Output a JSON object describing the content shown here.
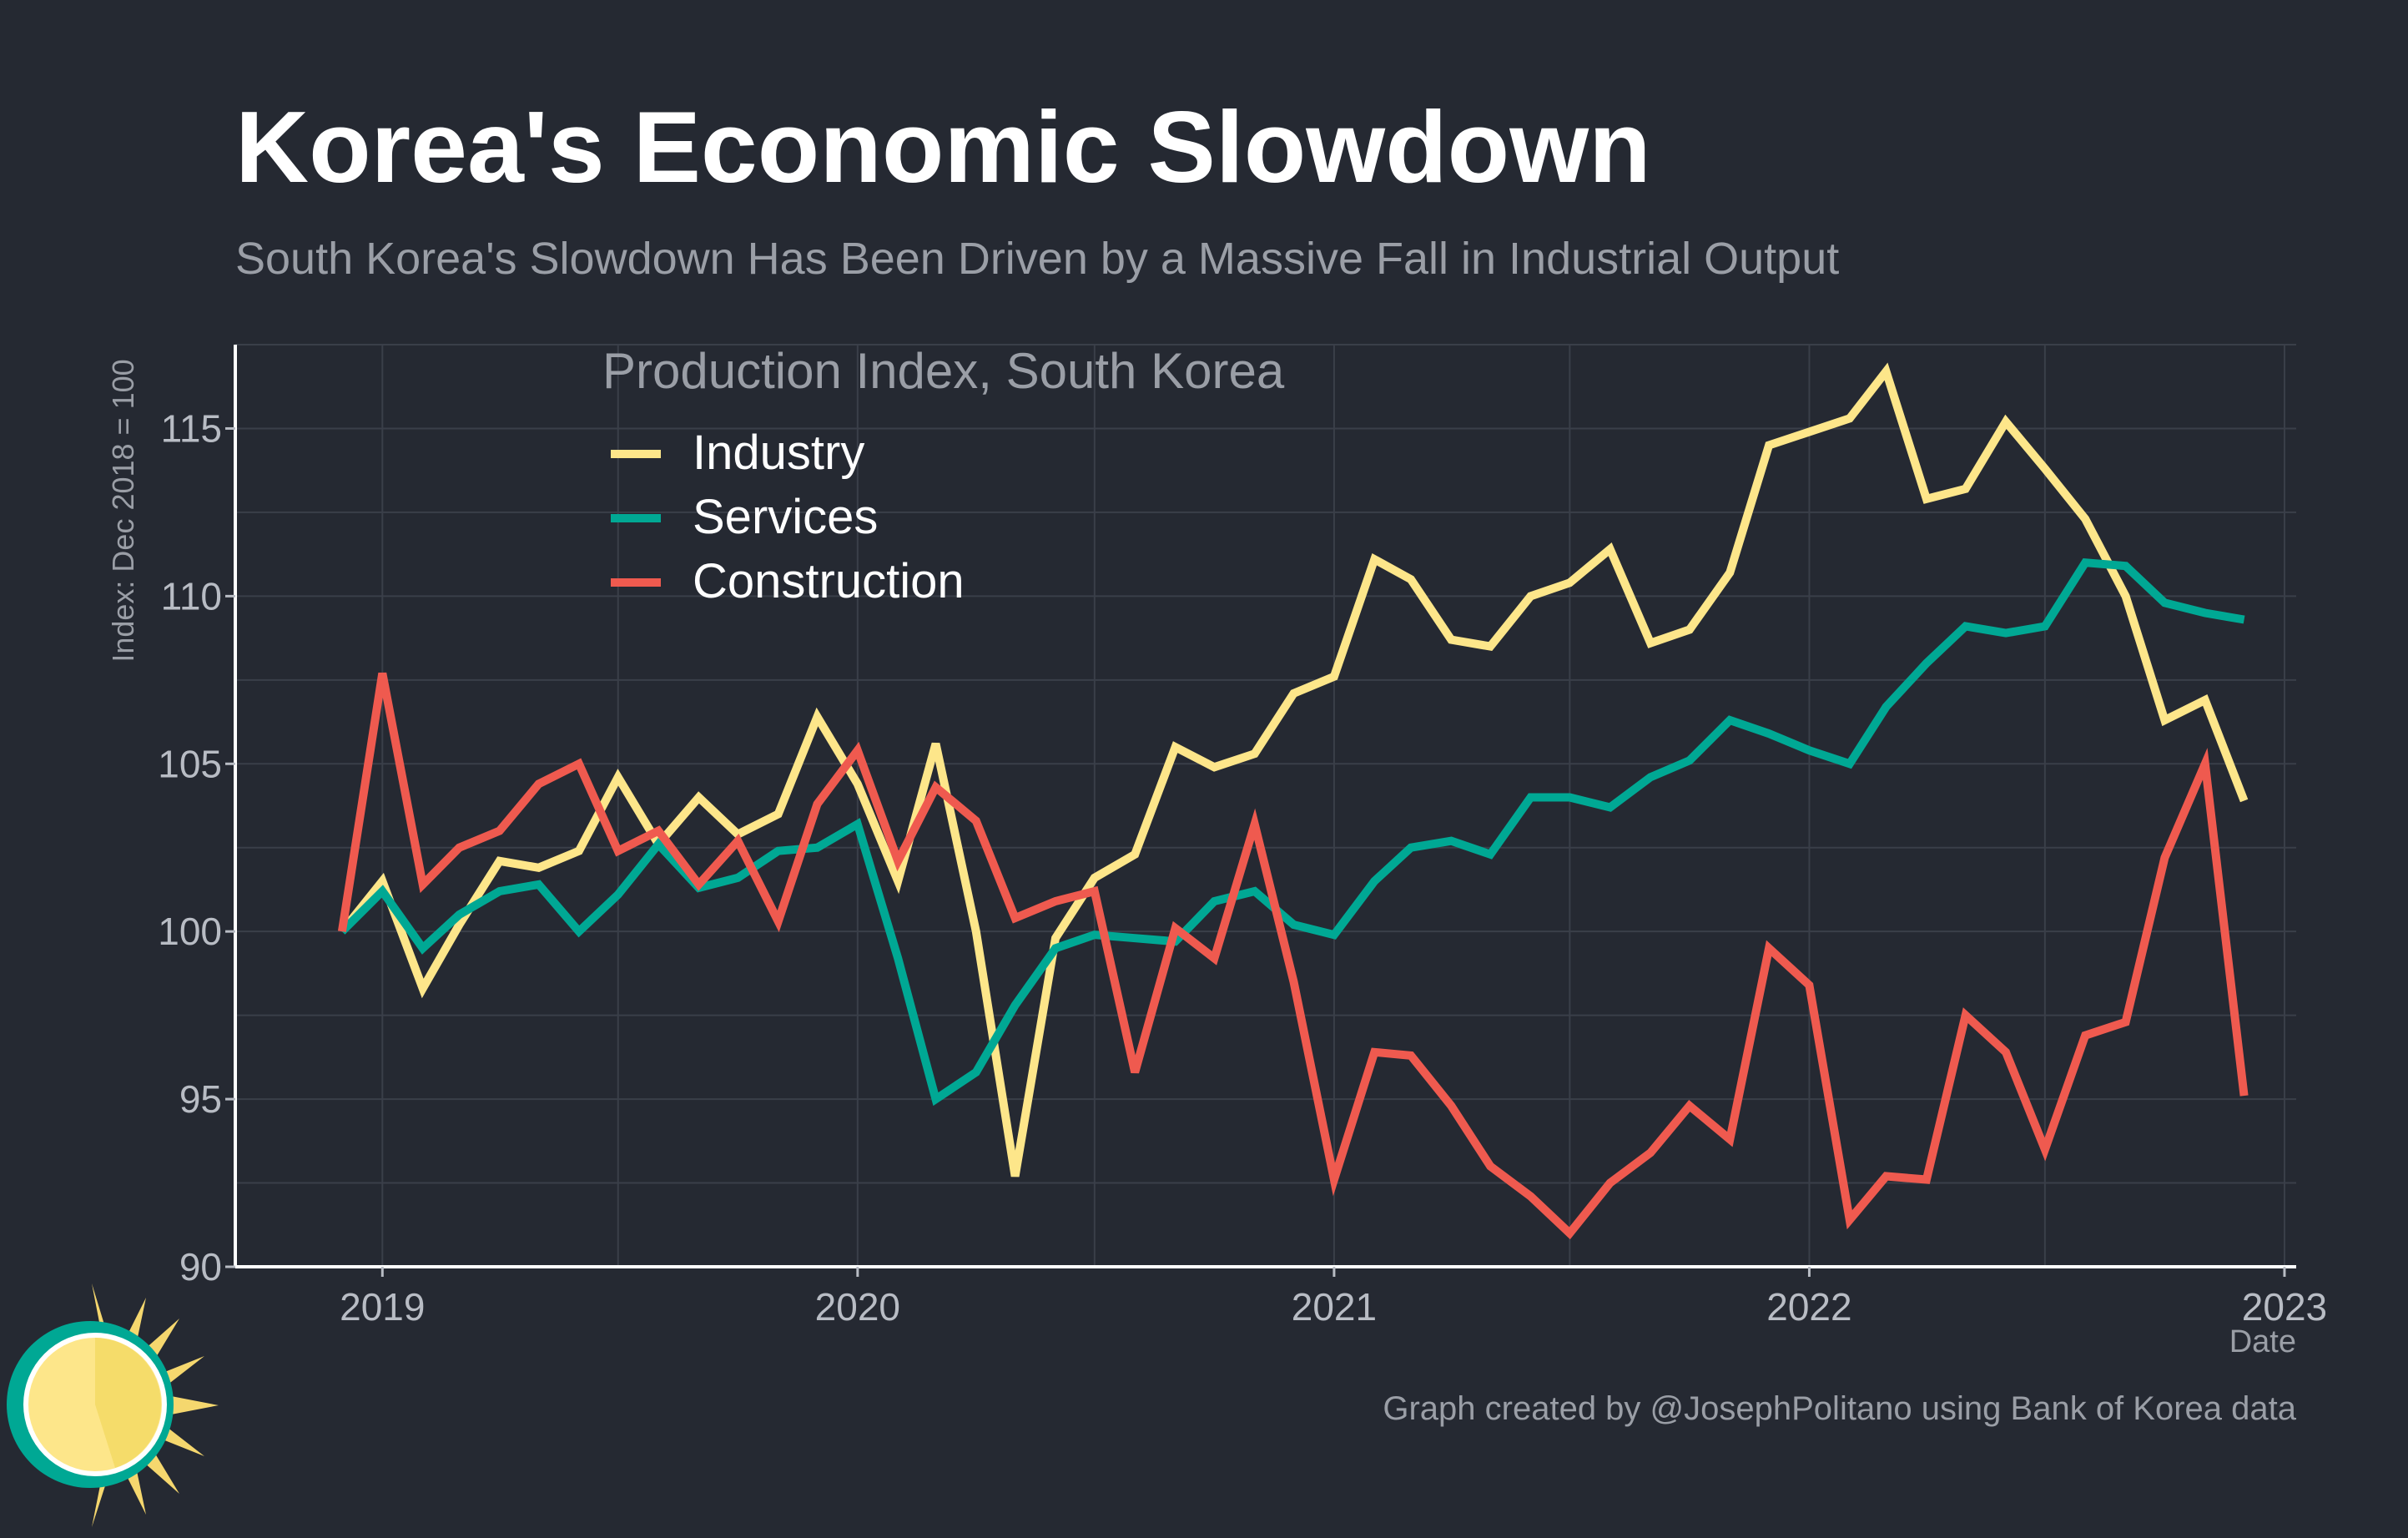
{
  "header": {
    "title": "Korea's Economic Slowdown",
    "subtitle": "South Korea's Slowdown Has Been Driven by a Massive Fall in Industrial Output"
  },
  "footer": {
    "caption": "Graph created by @JosephPolitano using Bank of Korea data",
    "logo_icon": "sun-logo-icon"
  },
  "colors": {
    "background": "#252932",
    "grid": "#3a3f49",
    "industry": "#fde68a",
    "services": "#00a894",
    "construction": "#ef5a4f"
  },
  "chart_data": {
    "type": "line",
    "legend_title": "Production Index, South Korea",
    "legend_position": "top-left",
    "xlabel": "Date",
    "ylabel": "Index: Dec 2018 = 100",
    "ylim": [
      90,
      117.5
    ],
    "yticks": [
      "90",
      "95",
      "100",
      "105",
      "110",
      "115"
    ],
    "xlim": [
      "2018-09-10",
      "2023-01-10"
    ],
    "xticks": [
      "2019",
      "2020",
      "2021",
      "2022",
      "2023"
    ],
    "grid": true,
    "x": [
      "2018-12",
      "2019-01",
      "2019-02",
      "2019-03",
      "2019-04",
      "2019-05",
      "2019-06",
      "2019-07",
      "2019-08",
      "2019-09",
      "2019-10",
      "2019-11",
      "2019-12",
      "2020-01",
      "2020-02",
      "2020-03",
      "2020-04",
      "2020-05",
      "2020-06",
      "2020-07",
      "2020-08",
      "2020-09",
      "2020-10",
      "2020-11",
      "2020-12",
      "2021-01",
      "2021-02",
      "2021-03",
      "2021-04",
      "2021-05",
      "2021-06",
      "2021-07",
      "2021-08",
      "2021-09",
      "2021-10",
      "2021-11",
      "2021-12",
      "2022-01",
      "2022-02",
      "2022-03",
      "2022-04",
      "2022-05",
      "2022-06",
      "2022-07",
      "2022-08",
      "2022-09",
      "2022-10",
      "2022-11",
      "2022-12"
    ],
    "series": [
      {
        "name": "Industry",
        "values": [
          100.0,
          101.5,
          98.3,
          100.2,
          102.1,
          101.9,
          102.4,
          104.6,
          102.6,
          104.0,
          102.9,
          103.5,
          106.4,
          104.4,
          101.5,
          105.6,
          100.0,
          92.7,
          99.8,
          101.6,
          102.3,
          105.5,
          104.9,
          105.3,
          107.1,
          107.6,
          111.1,
          110.5,
          108.7,
          108.5,
          110.0,
          110.4,
          111.4,
          108.6,
          109.0,
          110.7,
          114.5,
          114.9,
          115.3,
          116.7,
          112.9,
          113.2,
          115.2,
          113.8,
          112.3,
          110.0,
          106.3,
          106.9,
          103.9
        ]
      },
      {
        "name": "Services",
        "values": [
          100.0,
          101.2,
          99.5,
          100.5,
          101.2,
          101.4,
          100.0,
          101.1,
          102.6,
          101.3,
          101.6,
          102.4,
          102.5,
          103.2,
          99.2,
          95.0,
          95.8,
          97.8,
          99.5,
          99.9,
          99.8,
          99.7,
          100.9,
          101.2,
          100.2,
          99.9,
          101.5,
          102.5,
          102.7,
          102.3,
          104.0,
          104.0,
          103.7,
          104.6,
          105.1,
          106.3,
          105.9,
          105.4,
          105.0,
          106.7,
          108.0,
          109.1,
          108.9,
          109.1,
          111.0,
          110.9,
          109.8,
          109.5,
          109.3
        ]
      },
      {
        "name": "Construction",
        "values": [
          100.0,
          107.7,
          101.4,
          102.5,
          103.0,
          104.4,
          105.0,
          102.4,
          103.0,
          101.4,
          102.7,
          100.3,
          103.8,
          105.4,
          102.1,
          104.3,
          103.3,
          100.4,
          100.9,
          101.2,
          95.8,
          100.1,
          99.2,
          103.2,
          98.5,
          92.6,
          96.4,
          96.3,
          94.8,
          93.0,
          92.1,
          91.0,
          92.5,
          93.4,
          94.8,
          93.8,
          99.5,
          98.4,
          91.4,
          92.7,
          92.6,
          97.5,
          96.4,
          93.5,
          96.9,
          97.3,
          102.2,
          105.0,
          95.1
        ]
      }
    ]
  }
}
